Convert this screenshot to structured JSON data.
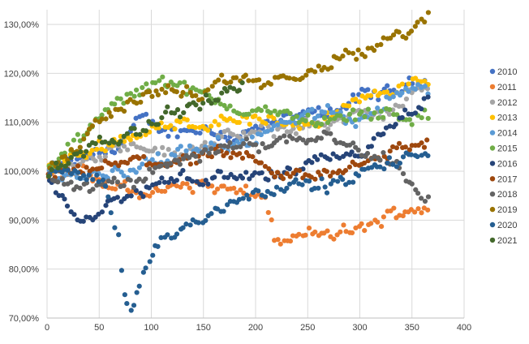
{
  "chart_data": {
    "type": "scatter",
    "title": "",
    "xlabel": "",
    "ylabel": "",
    "xlim": [
      0,
      400
    ],
    "ylim": [
      0.7,
      1.33
    ],
    "x_ticks": [
      0,
      50,
      100,
      150,
      200,
      250,
      300,
      350,
      400
    ],
    "x_tick_labels": [
      "0",
      "50",
      "100",
      "150",
      "200",
      "250",
      "300",
      "350",
      "400"
    ],
    "y_ticks": [
      0.7,
      0.8,
      0.9,
      1.0,
      1.1,
      1.2,
      1.3
    ],
    "y_tick_labels": [
      "70,00%",
      "80,00%",
      "90,00%",
      "100,00%",
      "110,00%",
      "120,00%",
      "130,00%"
    ],
    "grid": true,
    "legend_position": "right",
    "sample_spacing_days": 3,
    "series": [
      {
        "name": "2010",
        "color": "#4472C4",
        "x_start": 2,
        "x_end": 365,
        "anchors": [
          [
            0,
            1.0
          ],
          [
            30,
            1.02
          ],
          [
            60,
            1.04
          ],
          [
            90,
            1.1
          ],
          [
            120,
            1.08
          ],
          [
            150,
            1.09
          ],
          [
            180,
            1.07
          ],
          [
            210,
            1.09
          ],
          [
            240,
            1.11
          ],
          [
            270,
            1.12
          ],
          [
            300,
            1.15
          ],
          [
            330,
            1.16
          ],
          [
            365,
            1.19
          ]
        ]
      },
      {
        "name": "2011",
        "color": "#ED7D31",
        "x_start": 2,
        "x_end": 365,
        "anchors": [
          [
            0,
            1.0
          ],
          [
            30,
            1.0
          ],
          [
            60,
            0.97
          ],
          [
            90,
            0.955
          ],
          [
            120,
            0.965
          ],
          [
            150,
            0.975
          ],
          [
            180,
            0.955
          ],
          [
            210,
            0.945
          ],
          [
            220,
            0.85
          ],
          [
            250,
            0.87
          ],
          [
            280,
            0.87
          ],
          [
            300,
            0.88
          ],
          [
            320,
            0.9
          ],
          [
            340,
            0.92
          ],
          [
            365,
            0.93
          ]
        ]
      },
      {
        "name": "2012",
        "color": "#A5A5A5",
        "x_start": 2,
        "x_end": 365,
        "anchors": [
          [
            0,
            1.0
          ],
          [
            30,
            1.01
          ],
          [
            60,
            1.05
          ],
          [
            90,
            1.06
          ],
          [
            120,
            1.03
          ],
          [
            150,
            1.06
          ],
          [
            180,
            1.07
          ],
          [
            210,
            1.08
          ],
          [
            240,
            1.09
          ],
          [
            270,
            1.1
          ],
          [
            300,
            1.11
          ],
          [
            330,
            1.12
          ],
          [
            365,
            1.18
          ]
        ]
      },
      {
        "name": "2013",
        "color": "#FFC000",
        "x_start": 2,
        "x_end": 365,
        "anchors": [
          [
            0,
            1.0
          ],
          [
            30,
            1.03
          ],
          [
            60,
            1.06
          ],
          [
            90,
            1.08
          ],
          [
            120,
            1.09
          ],
          [
            150,
            1.1
          ],
          [
            180,
            1.11
          ],
          [
            210,
            1.1
          ],
          [
            240,
            1.1
          ],
          [
            270,
            1.11
          ],
          [
            300,
            1.14
          ],
          [
            330,
            1.17
          ],
          [
            365,
            1.18
          ]
        ]
      },
      {
        "name": "2014",
        "color": "#5B9BD5",
        "x_start": 2,
        "x_end": 365,
        "anchors": [
          [
            0,
            1.0
          ],
          [
            30,
            0.99
          ],
          [
            60,
            1.0
          ],
          [
            90,
            1.01
          ],
          [
            120,
            1.03
          ],
          [
            150,
            1.04
          ],
          [
            180,
            1.06
          ],
          [
            210,
            1.08
          ],
          [
            240,
            1.1
          ],
          [
            270,
            1.12
          ],
          [
            300,
            1.11
          ],
          [
            330,
            1.15
          ],
          [
            365,
            1.17
          ]
        ]
      },
      {
        "name": "2015",
        "color": "#70AD47",
        "x_start": 2,
        "x_end": 365,
        "anchors": [
          [
            0,
            1.0
          ],
          [
            30,
            1.06
          ],
          [
            60,
            1.13
          ],
          [
            90,
            1.16
          ],
          [
            110,
            1.2
          ],
          [
            130,
            1.17
          ],
          [
            150,
            1.15
          ],
          [
            180,
            1.13
          ],
          [
            210,
            1.12
          ],
          [
            240,
            1.11
          ],
          [
            270,
            1.1
          ],
          [
            300,
            1.12
          ],
          [
            330,
            1.12
          ],
          [
            365,
            1.11
          ]
        ]
      },
      {
        "name": "2016",
        "color": "#264478",
        "x_start": 2,
        "x_end": 365,
        "anchors": [
          [
            0,
            0.99
          ],
          [
            15,
            0.94
          ],
          [
            35,
            0.89
          ],
          [
            60,
            0.93
          ],
          [
            90,
            0.96
          ],
          [
            120,
            0.98
          ],
          [
            150,
            0.99
          ],
          [
            180,
            0.99
          ],
          [
            210,
            0.985
          ],
          [
            240,
            1.0
          ],
          [
            270,
            1.02
          ],
          [
            300,
            1.04
          ],
          [
            330,
            1.08
          ],
          [
            365,
            1.15
          ]
        ]
      },
      {
        "name": "2017",
        "color": "#9E480E",
        "x_start": 2,
        "x_end": 365,
        "anchors": [
          [
            0,
            0.98
          ],
          [
            30,
            1.0
          ],
          [
            60,
            1.01
          ],
          [
            90,
            1.02
          ],
          [
            120,
            1.02
          ],
          [
            150,
            1.03
          ],
          [
            180,
            1.03
          ],
          [
            200,
            1.01
          ],
          [
            230,
            0.99
          ],
          [
            260,
            0.99
          ],
          [
            280,
            1.0
          ],
          [
            300,
            1.02
          ],
          [
            330,
            1.04
          ],
          [
            365,
            1.06
          ]
        ]
      },
      {
        "name": "2018",
        "color": "#636363",
        "x_start": 2,
        "x_end": 365,
        "anchors": [
          [
            0,
            1.0
          ],
          [
            30,
            0.96
          ],
          [
            60,
            0.97
          ],
          [
            90,
            0.98
          ],
          [
            120,
            1.02
          ],
          [
            150,
            1.04
          ],
          [
            180,
            1.05
          ],
          [
            210,
            1.06
          ],
          [
            240,
            1.07
          ],
          [
            270,
            1.08
          ],
          [
            300,
            1.04
          ],
          [
            330,
            1.02
          ],
          [
            350,
            0.98
          ],
          [
            365,
            0.95
          ]
        ]
      },
      {
        "name": "2019",
        "color": "#997300",
        "x_start": 2,
        "x_end": 365,
        "anchors": [
          [
            0,
            1.0
          ],
          [
            30,
            1.05
          ],
          [
            60,
            1.12
          ],
          [
            90,
            1.15
          ],
          [
            120,
            1.17
          ],
          [
            150,
            1.15
          ],
          [
            180,
            1.19
          ],
          [
            210,
            1.18
          ],
          [
            240,
            1.19
          ],
          [
            270,
            1.22
          ],
          [
            300,
            1.24
          ],
          [
            330,
            1.27
          ],
          [
            365,
            1.31
          ]
        ]
      },
      {
        "name": "2020",
        "color": "#255E91",
        "x_start": 2,
        "x_end": 365,
        "anchors": [
          [
            0,
            1.0
          ],
          [
            30,
            1.0
          ],
          [
            55,
            0.98
          ],
          [
            68,
            0.86
          ],
          [
            75,
            0.74
          ],
          [
            82,
            0.71
          ],
          [
            92,
            0.8
          ],
          [
            110,
            0.86
          ],
          [
            140,
            0.89
          ],
          [
            170,
            0.93
          ],
          [
            200,
            0.96
          ],
          [
            230,
            0.97
          ],
          [
            260,
            0.97
          ],
          [
            290,
            0.98
          ],
          [
            320,
            1.01
          ],
          [
            365,
            1.04
          ]
        ]
      },
      {
        "name": "2021",
        "color": "#43682B",
        "x_start": 2,
        "x_end": 190,
        "anchors": [
          [
            0,
            1.0
          ],
          [
            30,
            1.03
          ],
          [
            60,
            1.06
          ],
          [
            90,
            1.09
          ],
          [
            120,
            1.12
          ],
          [
            150,
            1.14
          ],
          [
            190,
            1.18
          ]
        ]
      }
    ]
  }
}
